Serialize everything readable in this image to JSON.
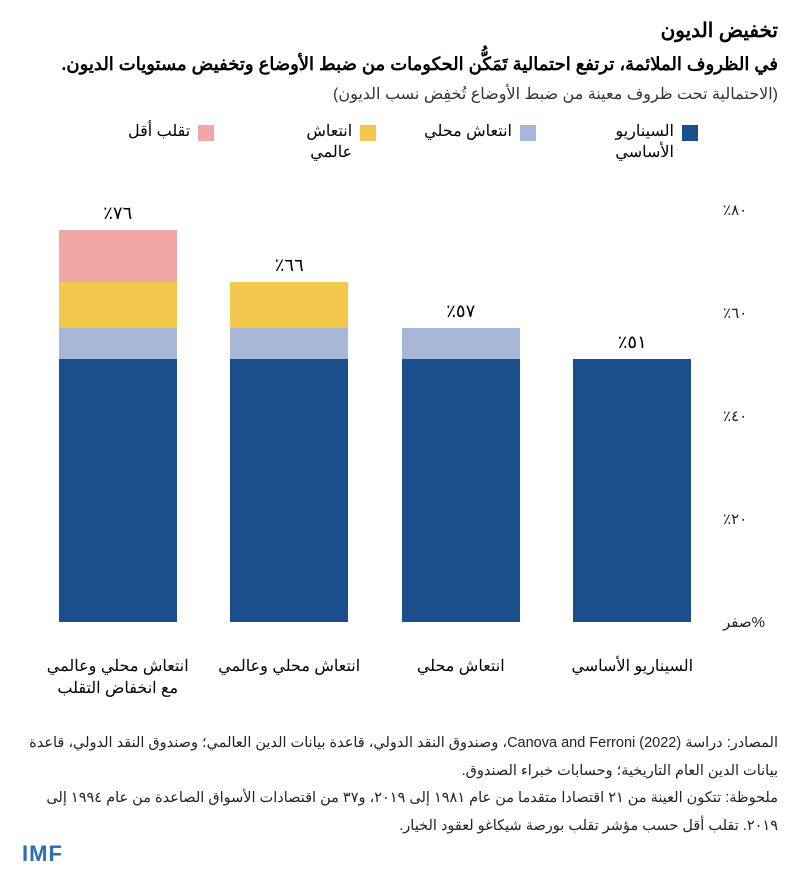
{
  "title": "تخفيض الديون",
  "subtitle": "في الظروف الملائمة، ترتفع احتمالية تَمَكُّن الحكومات من ضبط الأوضاع وتخفيض مستويات الديون.",
  "note": "(الاحتمالية تحت ظروف معينة من ضبط الأوضاع تُخفِض نسب الديون)",
  "legend": [
    {
      "label": "السيناريو الأساسي",
      "color": "#1a4e8c"
    },
    {
      "label": "انتعاش محلي",
      "color": "#a8b7d8"
    },
    {
      "label": "انتعاش عالمي",
      "color": "#f2c94c"
    },
    {
      "label": "تقلب أقل",
      "color": "#f2a7a7"
    }
  ],
  "chart": {
    "type": "stacked-bar",
    "y": {
      "min": 0,
      "max": 80,
      "step": 20,
      "zero_label": "صفر%"
    },
    "tick_prefix": "٪",
    "tick_fontsize": 15,
    "background_color": "#ffffff",
    "bars": [
      {
        "category": "السيناريو الأساسي",
        "total_label": "٪٥١",
        "segments": [
          {
            "value": 51,
            "color": "#1a4e8c"
          }
        ]
      },
      {
        "category": "انتعاش محلي",
        "total_label": "٪٥٧",
        "segments": [
          {
            "value": 51,
            "color": "#1a4e8c"
          },
          {
            "value": 6,
            "color": "#a8b7d8"
          }
        ]
      },
      {
        "category": "انتعاش محلي وعالمي",
        "total_label": "٪٦٦",
        "segments": [
          {
            "value": 51,
            "color": "#1a4e8c"
          },
          {
            "value": 6,
            "color": "#a8b7d8"
          },
          {
            "value": 9,
            "color": "#f2c94c"
          }
        ]
      },
      {
        "category": "انتعاش محلي وعالمي مع انخفاض التقلب",
        "total_label": "٪٧٦",
        "segments": [
          {
            "value": 51,
            "color": "#1a4e8c"
          },
          {
            "value": 6,
            "color": "#a8b7d8"
          },
          {
            "value": 9,
            "color": "#f2c94c"
          },
          {
            "value": 10,
            "color": "#f2a7a7"
          }
        ]
      }
    ],
    "ytick_labels": [
      "صفر%",
      "٪٢٠",
      "٪٤٠",
      "٪٦٠",
      "٪٨٠"
    ]
  },
  "sources_label": "المصادر:",
  "sources_text": "دراسة (2022) Canova and Ferroni، وصندوق النقد الدولي، قاعدة بيانات الدين العالمي؛ وصندوق النقد الدولي، قاعدة بيانات الدين العام التاريخية؛ وحسابات خبراء الصندوق.",
  "footnote_label": "ملحوظة:",
  "footnote_text": "تتكون العينة من ٢١ اقتصادا متقدما من عام ١٩٨١ إلى ٢٠١٩، و٣٧ من اقتصادات الأسواق الصاعدة من عام ١٩٩٤ إلى ٢٠١٩. تقلب أقل حسب مؤشر تقلب بورصة شيكاغو لعقود الخيار.",
  "logo": "IMF",
  "logo_color": "#2d6fb6"
}
